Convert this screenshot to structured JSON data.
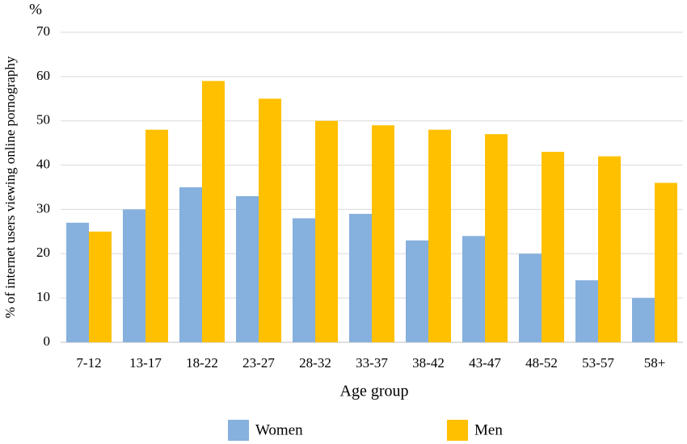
{
  "chart_data": {
    "type": "bar",
    "y_unit": "%",
    "y_label": "% of internet users viewing online pornography",
    "x_label": "Age group",
    "categories": [
      "7-12",
      "13-17",
      "18-22",
      "23-27",
      "28-32",
      "33-37",
      "38-42",
      "43-47",
      "48-52",
      "53-57",
      "58+"
    ],
    "series": [
      {
        "name": "Women",
        "color": "#86b0dd",
        "values": [
          27,
          30,
          35,
          33,
          28,
          29,
          23,
          24,
          20,
          14,
          10
        ]
      },
      {
        "name": "Men",
        "color": "#ffc000",
        "values": [
          25,
          48,
          59,
          55,
          50,
          49,
          48,
          47,
          43,
          42,
          36
        ]
      }
    ],
    "ylim": [
      0,
      70
    ],
    "yticks": [
      0,
      10,
      20,
      30,
      40,
      50,
      60,
      70
    ],
    "grid": true,
    "legend": "bottom"
  }
}
